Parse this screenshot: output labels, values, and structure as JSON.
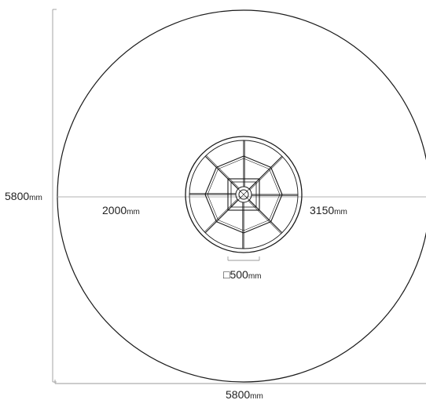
{
  "drawing": {
    "type": "umbrella plan view (top view) with dimensions",
    "dimensions": {
      "canopy_height": {
        "value": "5800",
        "unit": "mm"
      },
      "canopy_width": {
        "value": "5800",
        "unit": "mm"
      },
      "left_radius": {
        "value": "2000",
        "unit": "mm"
      },
      "right_radius": {
        "value": "3150",
        "unit": "mm"
      },
      "base_square": {
        "symbol": "□",
        "value": "500",
        "unit": "mm"
      }
    },
    "colors": {
      "line": "#1a1a1a",
      "dimension_line": "#9a9a9a",
      "text": "#222222",
      "background": "#ffffff"
    }
  }
}
